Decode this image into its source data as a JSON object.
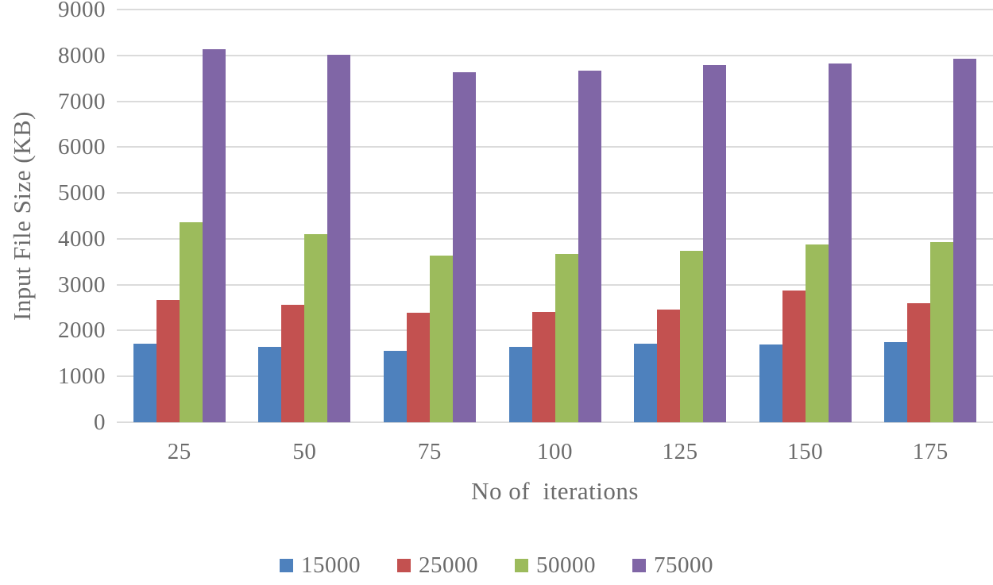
{
  "chart_data": {
    "type": "bar",
    "xlabel": "No of  iterations",
    "ylabel": "Input File Size (KB)",
    "categories": [
      "25",
      "50",
      "75",
      "100",
      "125",
      "150",
      "175"
    ],
    "series": [
      {
        "name": "15000",
        "color": "#4E81BD",
        "values": [
          1720,
          1650,
          1560,
          1640,
          1720,
          1690,
          1750
        ]
      },
      {
        "name": "25000",
        "color": "#C35150",
        "values": [
          2660,
          2570,
          2390,
          2400,
          2460,
          2870,
          2600
        ]
      },
      {
        "name": "50000",
        "color": "#9CBB5C",
        "values": [
          4360,
          4110,
          3630,
          3670,
          3730,
          3870,
          3930
        ]
      },
      {
        "name": "75000",
        "color": "#8066A6",
        "values": [
          8130,
          8010,
          7640,
          7670,
          7790,
          7820,
          7930
        ]
      }
    ],
    "ylim": [
      0,
      9000
    ],
    "ytick_step": 1000,
    "grid": "horizontal",
    "gridline_color": "#DBDBDB",
    "text_color": "#6B6B6B",
    "legend_position": "bottom"
  }
}
